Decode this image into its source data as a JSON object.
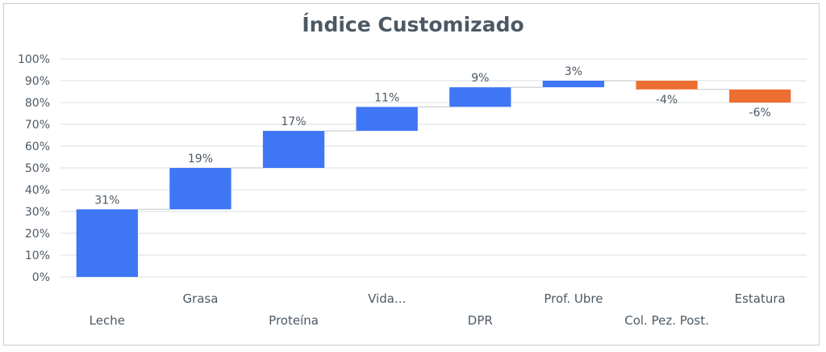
{
  "chart_data": {
    "type": "waterfall",
    "title": "Índice Customizado",
    "categories": [
      "Leche",
      "Grasa",
      "Proteína",
      "Vida...",
      "DPR",
      "Prof. Ubre",
      "Col. Pez. Post.",
      "Estatura"
    ],
    "values": [
      31,
      19,
      17,
      11,
      9,
      3,
      -4,
      -6
    ],
    "data_labels": [
      "31%",
      "19%",
      "17%",
      "11%",
      "9%",
      "3%",
      "-4%",
      "-6%"
    ],
    "y_ticks": [
      "0%",
      "10%",
      "20%",
      "30%",
      "40%",
      "50%",
      "60%",
      "70%",
      "80%",
      "90%",
      "100%"
    ],
    "ylim": [
      0,
      100
    ],
    "grid": true,
    "legend": "none",
    "colors": {
      "increase": "#3f76f5",
      "decrease": "#ec6f31",
      "grid": "#d9dee2",
      "text": "#4d5964"
    }
  }
}
